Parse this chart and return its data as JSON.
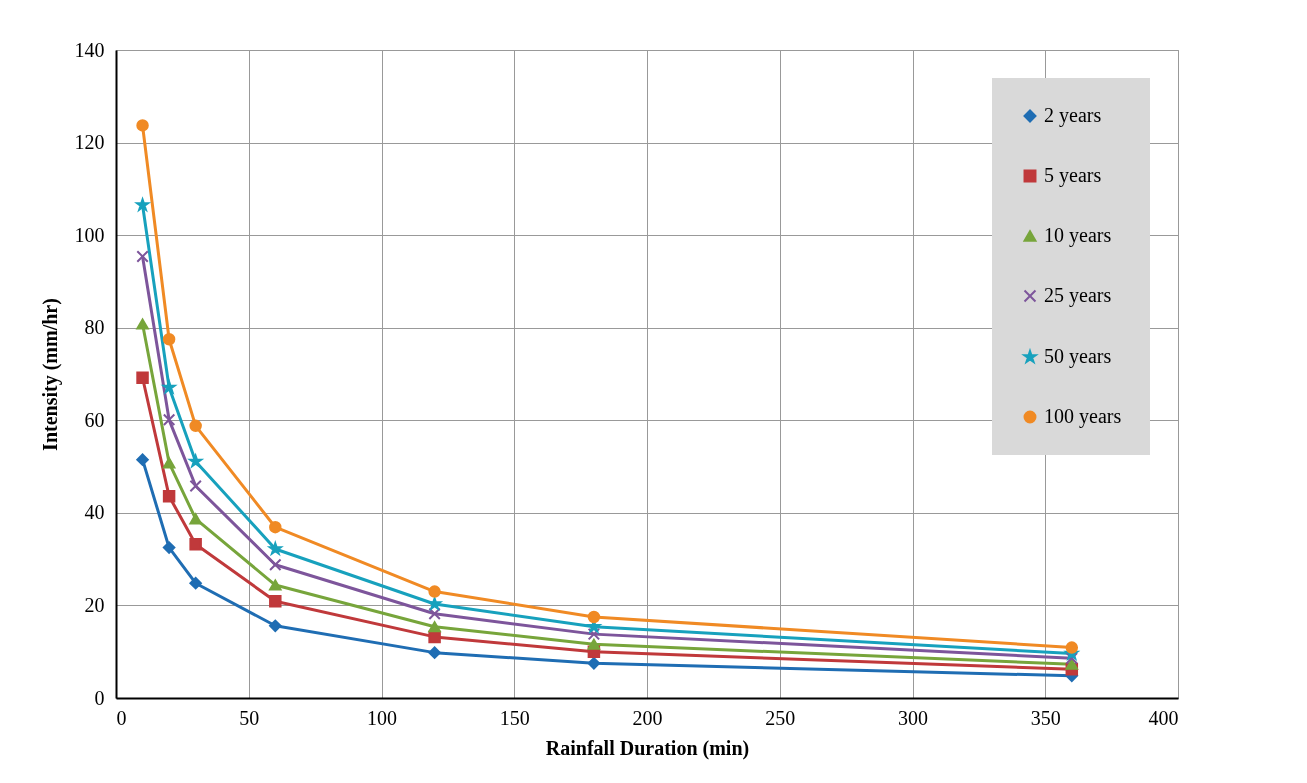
{
  "chart_data": {
    "type": "line",
    "xlabel": "Rainfall Duration (min)",
    "ylabel": "Intensity (mm/hr)",
    "x": [
      10,
      20,
      30,
      60,
      120,
      180,
      360
    ],
    "xlim": [
      0,
      400
    ],
    "xticks": [
      0,
      50,
      100,
      150,
      200,
      250,
      300,
      350,
      400
    ],
    "ylim": [
      0,
      140
    ],
    "yticks": [
      0,
      20,
      40,
      60,
      80,
      100,
      120,
      140
    ],
    "grid": true,
    "legend": "top right",
    "series": [
      {
        "name": "2 years",
        "color": "#1f6db3",
        "marker": "diamond",
        "values": [
          51.5,
          32.5,
          24.8,
          15.6,
          9.8,
          7.5,
          4.8
        ]
      },
      {
        "name": "5 years",
        "color": "#c0393b",
        "marker": "square",
        "values": [
          69.2,
          43.6,
          33.2,
          20.9,
          13.2,
          10.0,
          6.2
        ]
      },
      {
        "name": "10 years",
        "color": "#77a53b",
        "marker": "triangle",
        "values": [
          80.8,
          50.8,
          38.7,
          24.4,
          15.4,
          11.6,
          7.3
        ]
      },
      {
        "name": "25 years",
        "color": "#7d559b",
        "marker": "cross",
        "values": [
          95.4,
          60.1,
          45.8,
          28.8,
          18.2,
          13.8,
          8.6
        ]
      },
      {
        "name": "50 years",
        "color": "#17a1bd",
        "marker": "star",
        "values": [
          106.5,
          67.1,
          51.1,
          32.2,
          20.3,
          15.4,
          9.6
        ]
      },
      {
        "name": "100 years",
        "color": "#f08a24",
        "marker": "circle",
        "values": [
          123.7,
          77.5,
          58.8,
          36.9,
          23.0,
          17.5,
          10.9
        ]
      }
    ]
  }
}
